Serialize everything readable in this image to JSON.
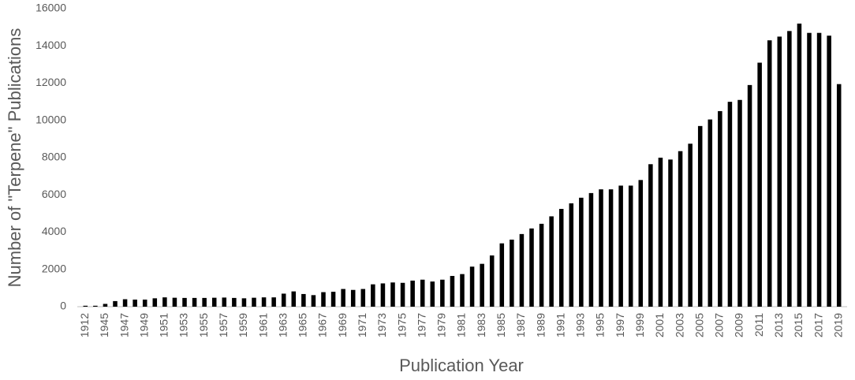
{
  "chart_data": {
    "type": "bar",
    "x_label": "Publication Year",
    "y_label": "Number of \"Terpene\" Publications",
    "categories": [
      "1912",
      null,
      "1945",
      null,
      "1947",
      null,
      "1949",
      null,
      "1951",
      null,
      "1953",
      null,
      "1955",
      null,
      "1957",
      null,
      "1959",
      null,
      "1961",
      null,
      "1963",
      null,
      "1965",
      null,
      "1967",
      null,
      "1969",
      null,
      "1971",
      null,
      "1973",
      null,
      "1975",
      null,
      "1977",
      null,
      "1979",
      null,
      "1981",
      null,
      "1983",
      null,
      "1985",
      null,
      "1987",
      null,
      "1989",
      null,
      "1991",
      null,
      "1993",
      null,
      "1995",
      null,
      "1997",
      null,
      "1999",
      null,
      "2001",
      null,
      "2003",
      null,
      "2005",
      null,
      "2007",
      null,
      "2009",
      null,
      "2011",
      null,
      "2013",
      null,
      "2015",
      null,
      "2017",
      null,
      "2019"
    ],
    "values": [
      50,
      50,
      150,
      300,
      400,
      380,
      380,
      450,
      500,
      480,
      470,
      470,
      470,
      480,
      490,
      470,
      450,
      480,
      500,
      500,
      700,
      820,
      680,
      620,
      780,
      800,
      950,
      900,
      950,
      1200,
      1250,
      1300,
      1280,
      1400,
      1450,
      1350,
      1450,
      1650,
      1750,
      2150,
      2300,
      2750,
      3400,
      3600,
      3900,
      4200,
      4450,
      4850,
      5250,
      5550,
      5850,
      6100,
      6300,
      6300,
      6500,
      6500,
      6800,
      7650,
      8000,
      7900,
      8350,
      8750,
      9700,
      10050,
      10500,
      11000,
      11100,
      11900,
      13100,
      14300,
      14500,
      14800,
      15200,
      14700,
      14700,
      14550,
      11950
    ],
    "color": "#000000",
    "ylim": [
      0,
      16000
    ],
    "yticks": [
      0,
      2000,
      4000,
      6000,
      8000,
      10000,
      12000,
      14000,
      16000
    ],
    "grid": false
  }
}
